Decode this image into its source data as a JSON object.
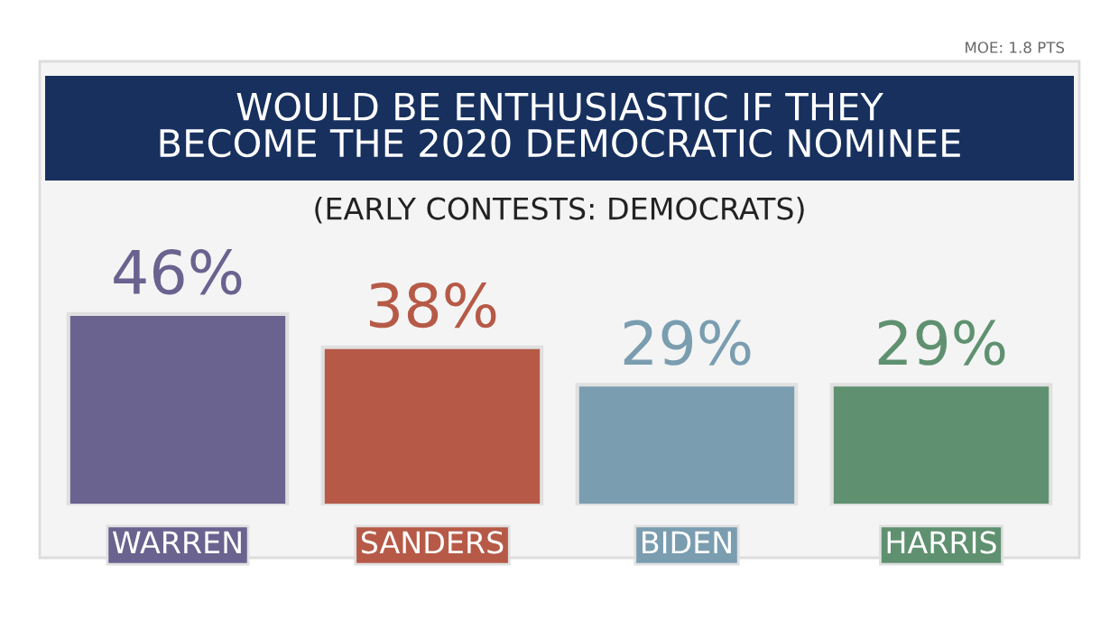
{
  "chart_data": {
    "type": "bar",
    "title": "WOULD BE ENTHUSIASTIC IF THEY\nBECOME THE 2020 DEMOCRATIC NOMINEE",
    "subtitle": "(EARLY CONTESTS: DEMOCRATS)",
    "annotations": [
      "MOE: 1.8 PTS"
    ],
    "categories": [
      "WARREN",
      "SANDERS",
      "BIDEN",
      "HARRIS"
    ],
    "values": [
      46,
      38,
      29,
      29
    ],
    "colors": [
      "#6a628f",
      "#b65a47",
      "#7a9db0",
      "#5f9170"
    ],
    "value_labels": [
      "46%",
      "38%",
      "29%",
      "29%"
    ],
    "tick_labels": "x"
  }
}
